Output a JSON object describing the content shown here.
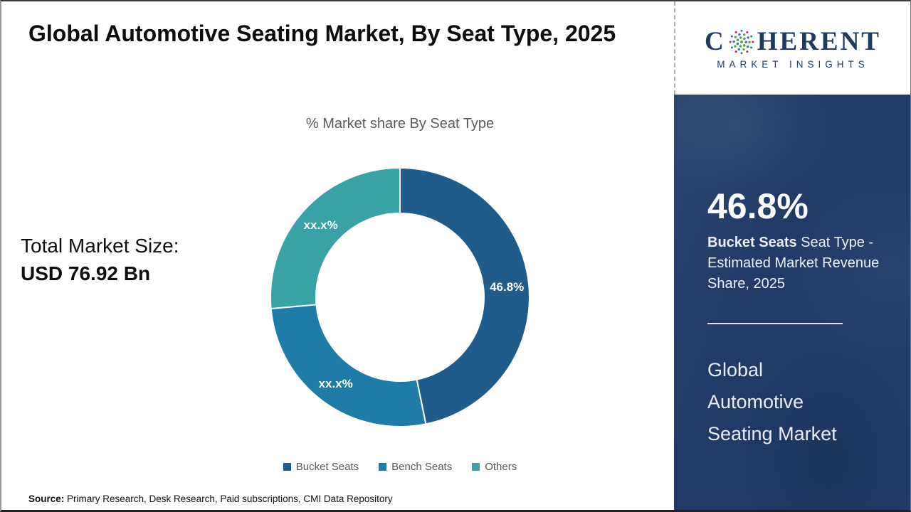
{
  "page": {
    "title": "Global Automotive Seating Market, By Seat Type, 2025",
    "source_label": "Source:",
    "source_text": " Primary Research, Desk Research, Paid subscriptions, CMI Data Repository"
  },
  "logo": {
    "word_start": "C",
    "word_end": "HERENT",
    "subtitle": "MARKET INSIGHTS",
    "brand_color": "#1E3A5F"
  },
  "stats": {
    "total_label": "Total Market Size:",
    "total_value": "USD 76.92 Bn"
  },
  "chart_data": {
    "type": "pie",
    "subtype": "donut",
    "title": "% Market share By Seat Type",
    "unit": "%",
    "start_angle_deg": 0,
    "clockwise": true,
    "legend_position": "bottom",
    "segments": [
      {
        "name": "Bucket Seats",
        "value": 46.8,
        "display_label": "46.8%",
        "color": "#1F5C8B"
      },
      {
        "name": "Bench Seats",
        "value": 26.8,
        "display_label": "xx.x%",
        "color": "#1E7CA8"
      },
      {
        "name": "Others",
        "value": 26.4,
        "display_label": "xx.x%",
        "color": "#38A2A6"
      }
    ]
  },
  "sidebar": {
    "bg_color": "#1F3B66",
    "stat_value": "46.8%",
    "stat_bold": "Bucket Seats",
    "stat_rest": " Seat Type - Estimated Market Revenue Share, 2025",
    "market_name": "Global Automotive Seating Market"
  }
}
